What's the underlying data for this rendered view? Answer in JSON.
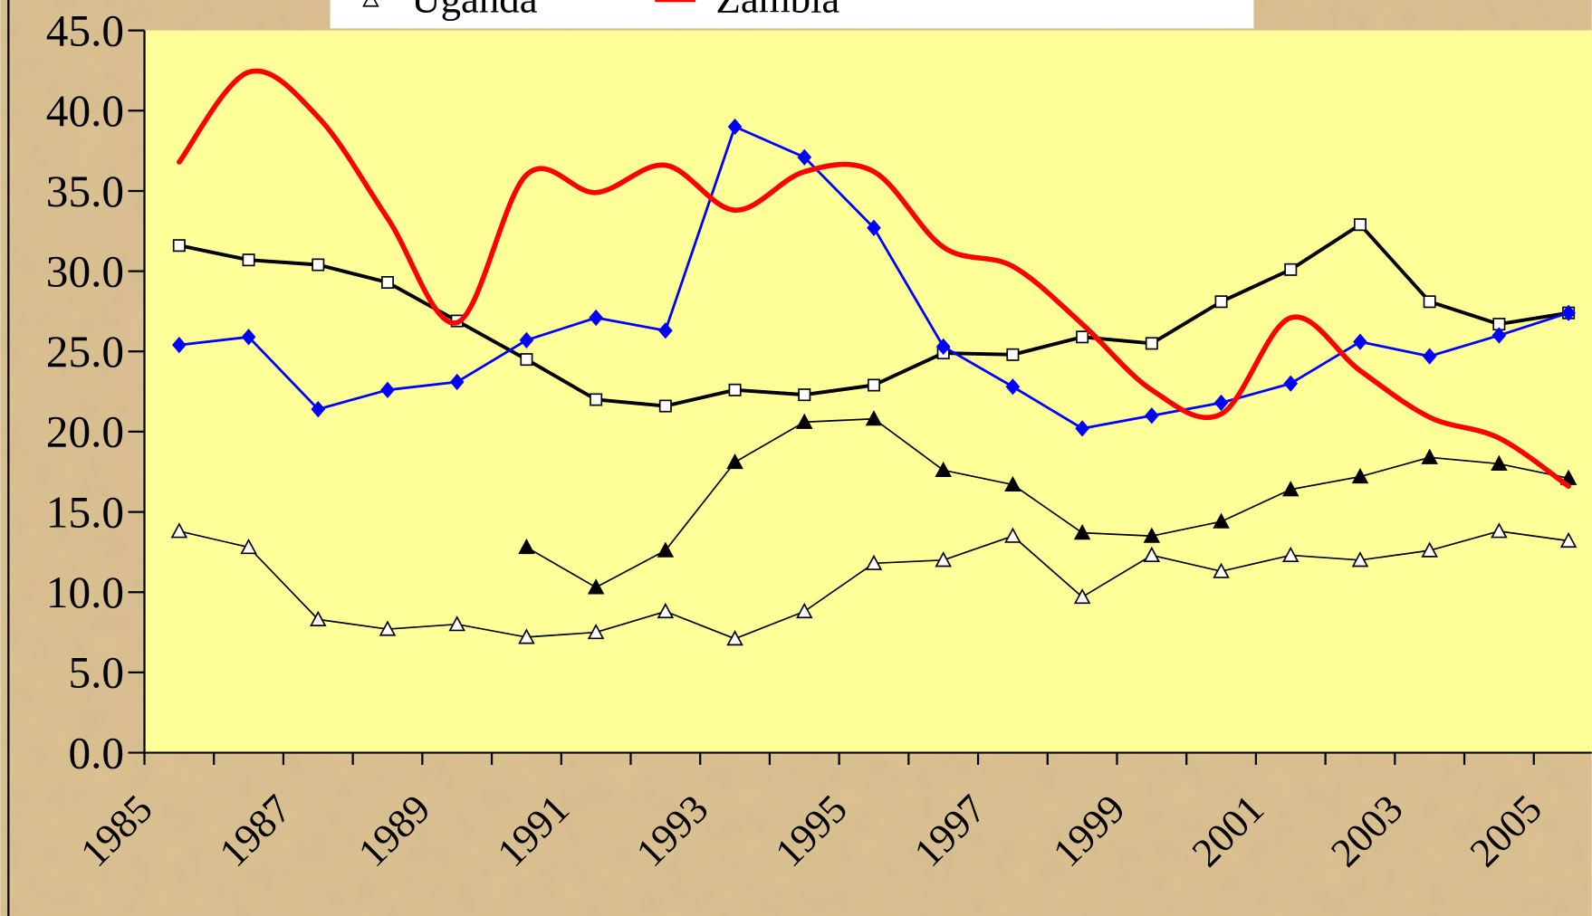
{
  "chart_data": {
    "type": "line",
    "categories": [
      "1985",
      null,
      "1987",
      null,
      "1989",
      null,
      "1991",
      null,
      "1993",
      null,
      "1995",
      null,
      "1997",
      null,
      "1999",
      null,
      "2001",
      null,
      "2003",
      null,
      "2005"
    ],
    "ylim": [
      0,
      45
    ],
    "yticks": [
      {
        "value": 0,
        "label": "0.0"
      },
      {
        "value": 5,
        "label": "5.0"
      },
      {
        "value": 10,
        "label": "10.0"
      },
      {
        "value": 15,
        "label": "15.0"
      },
      {
        "value": 20,
        "label": "20.0"
      },
      {
        "value": 25,
        "label": "25.0"
      },
      {
        "value": 30,
        "label": "30.0"
      },
      {
        "value": 35,
        "label": "35.0"
      },
      {
        "value": 40,
        "label": "40.0"
      },
      {
        "value": 45,
        "label": "45.0"
      }
    ],
    "grid": false,
    "series": [
      {
        "name": "Uganda",
        "color": "#000000",
        "marker": "triangle-open",
        "values": [
          13.8,
          12.8,
          8.3,
          7.7,
          8.0,
          7.2,
          7.5,
          8.8,
          7.1,
          8.8,
          11.8,
          12.0,
          13.5,
          9.7,
          12.3,
          11.3,
          12.3,
          12.0,
          12.6,
          13.8,
          13.2
        ]
      },
      {
        "name": "Zambia",
        "color": "#ff0000",
        "marker": "none",
        "smooth": true,
        "values": [
          36.8,
          42.4,
          39.6,
          33.3,
          26.8,
          36.0,
          34.9,
          36.6,
          33.8,
          36.2,
          36.2,
          31.5,
          30.3,
          26.7,
          22.6,
          21.1,
          27.1,
          23.8,
          20.9,
          19.6,
          16.6
        ]
      },
      {
        "color": "#0000ff",
        "marker": "diamond",
        "values": [
          25.4,
          25.9,
          21.4,
          22.6,
          23.1,
          25.7,
          27.1,
          26.3,
          39.0,
          37.1,
          32.7,
          25.3,
          22.8,
          20.2,
          21.0,
          21.8,
          23.0,
          25.6,
          24.7,
          26.0,
          27.4
        ]
      },
      {
        "color": "#000000",
        "marker": "square",
        "values": [
          31.6,
          30.7,
          30.4,
          29.3,
          26.9,
          24.5,
          22.0,
          21.6,
          22.6,
          22.3,
          22.9,
          24.9,
          24.8,
          25.9,
          25.5,
          28.1,
          30.1,
          32.9,
          28.1,
          26.7,
          27.4
        ]
      },
      {
        "color": "#000000",
        "marker": "triangle",
        "values": [
          null,
          null,
          null,
          null,
          null,
          12.8,
          10.3,
          12.6,
          18.1,
          20.6,
          20.8,
          17.6,
          16.7,
          13.7,
          13.5,
          14.4,
          16.4,
          17.2,
          18.4,
          18.0,
          17.1
        ]
      }
    ]
  }
}
